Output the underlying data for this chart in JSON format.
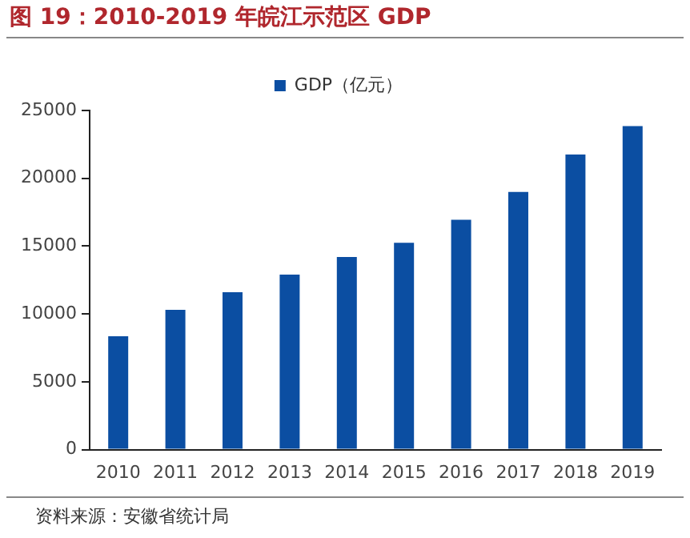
{
  "chart_data": {
    "type": "bar",
    "title": "图 19：2010-2019 年皖江示范区 GDP",
    "categories": [
      "2010",
      "2011",
      "2012",
      "2013",
      "2014",
      "2015",
      "2016",
      "2017",
      "2018",
      "2019"
    ],
    "series": [
      {
        "name": "GDP（亿元）",
        "color": "#0b4ea2",
        "values": [
          8350,
          10300,
          11600,
          12900,
          14200,
          15250,
          16950,
          19000,
          21750,
          23850
        ]
      }
    ],
    "ylim": [
      0,
      25000
    ],
    "yticks": [
      0,
      5000,
      10000,
      15000,
      20000,
      25000
    ],
    "grid": false,
    "legend": "top",
    "annotations": [
      "资料来源：安徽省统计局"
    ]
  }
}
